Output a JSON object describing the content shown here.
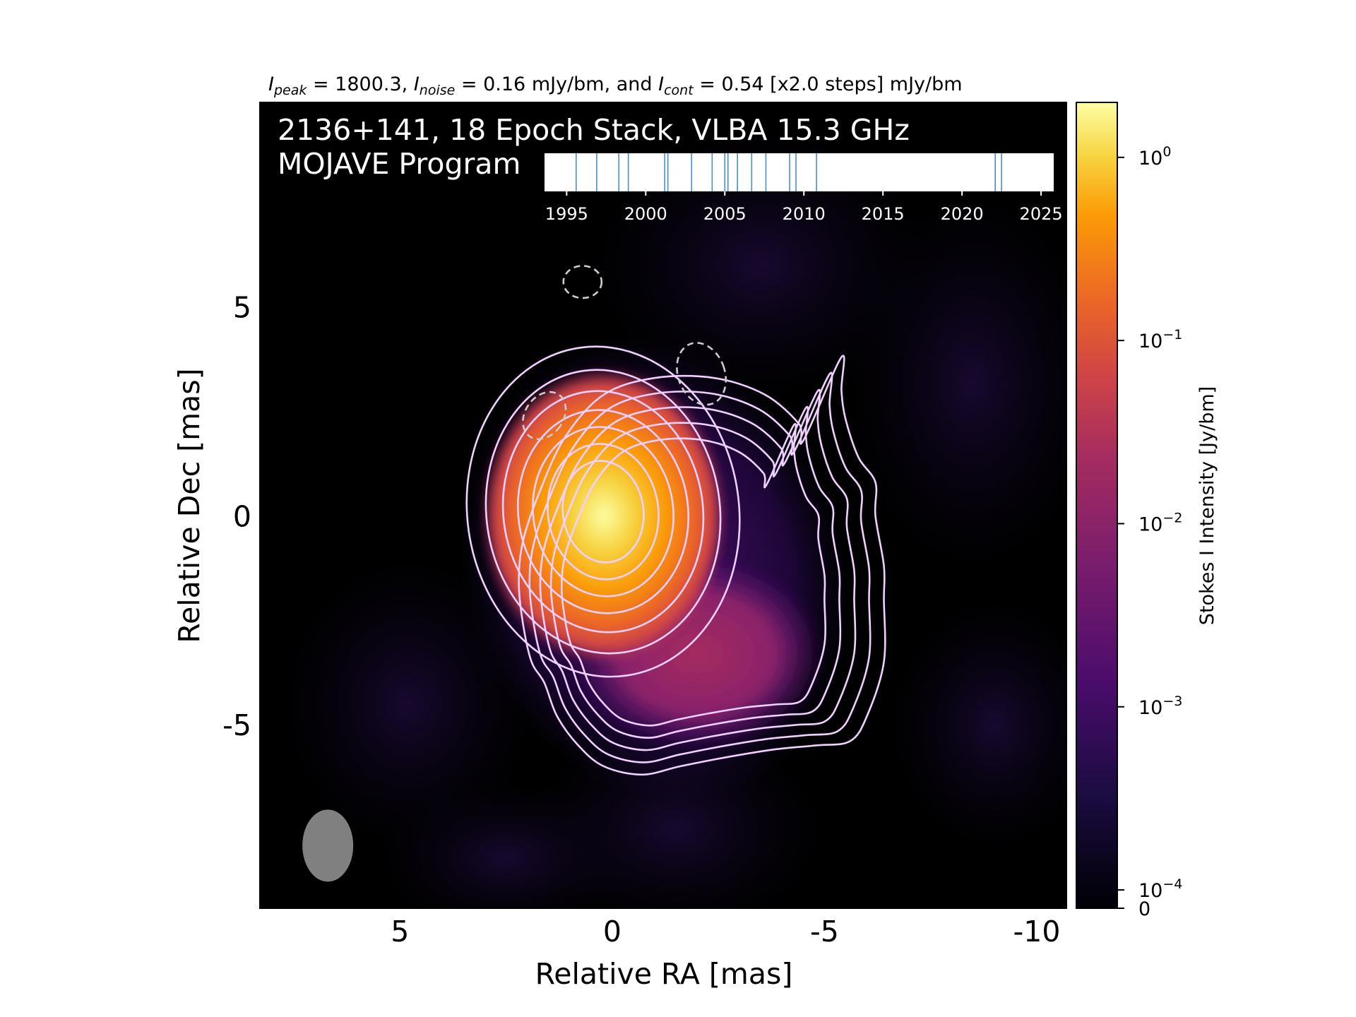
{
  "chart_data": {
    "type": "heatmap",
    "header": {
      "peak_value": "1800.3",
      "noise_value": "0.16",
      "cont_value": "0.54",
      "cont_steps": "[x2.0 steps]",
      "unit": "mJy/bm",
      "peak_sub": "peak",
      "noise_sub": "noise",
      "cont_sub": "cont"
    },
    "title_line1": "2136+141, 18 Epoch Stack, VLBA 15.3 GHz",
    "title_line2": "MOJAVE Program",
    "xlabel": "Relative RA [mas]",
    "ylabel": "Relative Dec [mas]",
    "xlim": [
      8.3,
      -10.7
    ],
    "ylim": [
      -9.4,
      9.9
    ],
    "x_ticks": [
      5,
      0,
      -5,
      -10
    ],
    "x_tick_labels": [
      "5",
      "0",
      "-5",
      "-10"
    ],
    "y_ticks": [
      5,
      0,
      -5
    ],
    "y_tick_labels": [
      "5",
      "0",
      "-5"
    ],
    "colorbar": {
      "label": "Stokes I Intensity [Jy/bm]",
      "colormap": "inferno",
      "scale": "log",
      "min_label": "0",
      "tick_exponents": [
        0,
        -1,
        -2,
        -3,
        -4
      ],
      "tick_base": "10",
      "range_log10": [
        -4.1,
        0.3
      ]
    },
    "core": {
      "ra": 0.2,
      "dec": 0.0,
      "peak_jy_per_bm": 1.8003
    },
    "jet_component": {
      "ra": -2.0,
      "dec": -3.3
    },
    "contours": {
      "levels_mjy_per_bm": [
        0.54,
        1.08,
        2.16,
        4.32,
        8.64,
        17.28,
        34.56,
        69.12,
        138.24,
        276.48,
        552.96,
        1105.92
      ],
      "positive_color": "#f0d0ff",
      "negative_color": "#cccccc",
      "negative_contours": [
        {
          "ra": 0.7,
          "dec": 5.6
        },
        {
          "ra": -2.1,
          "dec": 3.4
        },
        {
          "ra": 1.6,
          "dec": 2.4
        }
      ]
    },
    "beam": {
      "ra": 6.7,
      "dec": -7.9,
      "color": "#808080"
    },
    "epoch_timeline": {
      "range": [
        1993.6,
        2025.8
      ],
      "tick_values": [
        1995,
        2000,
        2005,
        2010,
        2015,
        2020,
        2025
      ],
      "tick_labels": [
        "1995",
        "2000",
        "2005",
        "2010",
        "2015",
        "2020",
        "2025"
      ],
      "epochs": [
        1995.6,
        1996.9,
        1998.3,
        1998.9,
        2001.2,
        2001.4,
        2002.9,
        2004.2,
        2005.0,
        2005.2,
        2005.8,
        2006.7,
        2007.6,
        2009.1,
        2009.5,
        2010.8,
        2022.1,
        2022.5
      ],
      "line_color": "#4a8fc7"
    },
    "colors": {
      "background_map": "#000000",
      "axis_text": "#000000",
      "title_text": "#ffffff"
    }
  }
}
